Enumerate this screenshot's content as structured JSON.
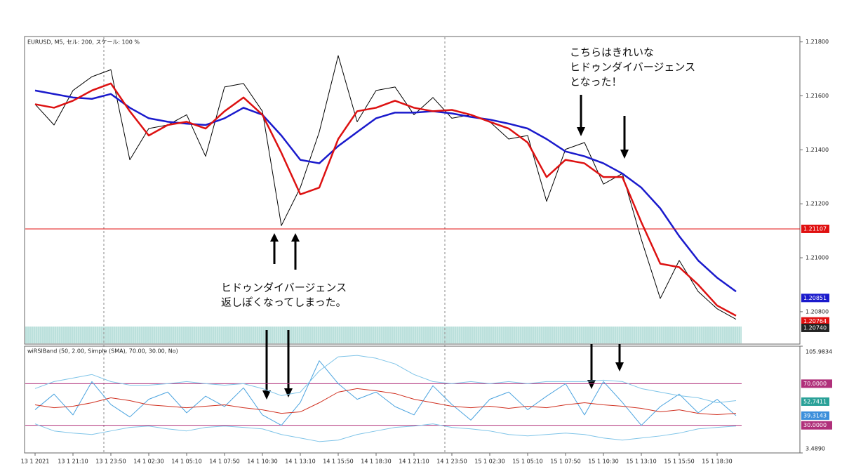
{
  "chart_data": [
    {
      "type": "line",
      "title": "EURUSD, M5, セル: 200, スケール: 100 %",
      "categories": [
        "13 1 2021",
        null,
        "13 1 21:10",
        null,
        "13 1 23:50",
        null,
        "14 1 02:30",
        null,
        "14 1 05:10",
        null,
        "14 1 07:50",
        null,
        "14 1 10:30",
        null,
        "14 1 13:10",
        null,
        "14 1 15:50",
        null,
        "14 1 18:30",
        null,
        "14 1 21:10",
        null,
        "14 1 23:50",
        null,
        "15 1 02:30",
        null,
        "15 1 05:10",
        null,
        "15 1 07:50",
        null,
        "15 1 10:30",
        null,
        "15 1 13:10",
        null,
        "15 1 15:50",
        null,
        "15 1 18:30",
        null
      ],
      "ylim": [
        1.2068,
        1.2182
      ],
      "yticks": [
        {
          "value": 1.218,
          "label": "1.21800"
        },
        {
          "value": 1.216,
          "label": "1.21600"
        },
        {
          "value": 1.214,
          "label": "1.21400"
        },
        {
          "value": 1.212,
          "label": "1.21200"
        },
        {
          "value": 1.21,
          "label": "1.21000"
        },
        {
          "value": 1.208,
          "label": "1.20800"
        }
      ],
      "series": [
        {
          "color": "#000000",
          "values": [
            1.21569,
            1.21492,
            1.2162,
            1.21671,
            1.21697,
            1.21363,
            1.21479,
            1.21492,
            1.2153,
            1.21376,
            1.21633,
            1.21646,
            1.21543,
            1.21119,
            1.2126,
            1.21466,
            1.21749,
            1.21504,
            1.2162,
            1.21633,
            1.2153,
            1.21594,
            1.21517,
            1.2153,
            1.21504,
            1.2144,
            1.21453,
            1.21209,
            1.21402,
            1.21427,
            1.21273,
            1.21312,
            1.21068,
            1.20849,
            1.2099,
            1.20875,
            1.20811,
            1.20772
          ]
        },
        {
          "color": "#1a1acc",
          "values": [
            1.2162,
            1.21607,
            1.21594,
            1.21589,
            1.21607,
            1.21556,
            1.21517,
            1.21504,
            1.21497,
            1.21492,
            1.21517,
            1.21556,
            1.2153,
            1.21453,
            1.21363,
            1.2135,
            1.21414,
            1.21466,
            1.21517,
            1.21538,
            1.21538,
            1.21543,
            1.21535,
            1.21522,
            1.21512,
            1.21497,
            1.21479,
            1.2144,
            1.21394,
            1.21376,
            1.2135,
            1.21312,
            1.2126,
            1.21183,
            1.2108,
            1.2099,
            1.20926,
            1.20875
          ]
        },
        {
          "color": "#dd1111",
          "values": [
            1.21569,
            1.21556,
            1.21582,
            1.2162,
            1.21646,
            1.21543,
            1.21453,
            1.21492,
            1.21504,
            1.21479,
            1.21543,
            1.21594,
            1.2153,
            1.21389,
            1.21235,
            1.2126,
            1.2144,
            1.21543,
            1.21556,
            1.21582,
            1.21556,
            1.21543,
            1.21548,
            1.2153,
            1.21504,
            1.21479,
            1.21427,
            1.21299,
            1.21363,
            1.2135,
            1.21299,
            1.21299,
            1.21132,
            1.20978,
            1.20965,
            1.209,
            1.20823,
            1.20785
          ]
        }
      ],
      "markers": [
        {
          "value": 1.21107,
          "color": "#e01010",
          "line": true
        },
        {
          "value": 1.20851,
          "color": "#1a1acc"
        },
        {
          "value": 1.20764,
          "color": "#e01010"
        },
        {
          "value": 1.2074,
          "label": "1.20740",
          "color": "#222222"
        }
      ],
      "annotations": [
        {
          "lines": [
            "こちらはきれいな",
            "ヒドゥンダイバージェンス",
            "となった！"
          ]
        },
        {
          "lines": [
            "ヒドゥンダイバージェンス",
            "返しぽくなってしまった。"
          ]
        }
      ]
    },
    {
      "type": "line",
      "title": "wiRSIBand (50, 2.00, Simple (SMA), 70.00, 30.00, No)",
      "ylim": [
        3.489,
        105.9834
      ],
      "yticks": [
        {
          "value": 105.9834,
          "label": "105.9834"
        },
        {
          "value": 3.489,
          "label": "3.4890"
        }
      ],
      "levels": [
        {
          "value": 70,
          "label": "70.0000",
          "color": "#b0307a"
        },
        {
          "value": 30,
          "label": "30.0000",
          "color": "#b0307a"
        }
      ],
      "markers": [
        {
          "value": 52.7411,
          "color": "#2aa198"
        },
        {
          "value": 39.3143,
          "color": "#3c8fdb"
        }
      ],
      "series": [
        {
          "color": "#4aa3df",
          "values": [
            45,
            60,
            40,
            72,
            50,
            38,
            55,
            62,
            42,
            58,
            48,
            66,
            40,
            30,
            52,
            92,
            70,
            55,
            62,
            48,
            40,
            68,
            50,
            35,
            55,
            62,
            45,
            58,
            70,
            40,
            72,
            52,
            30,
            48,
            60,
            42,
            55,
            39.3143
          ]
        },
        {
          "color": "#7fc4e8",
          "values": [
            65.3,
            72,
            75.4,
            78.8,
            72,
            68.6,
            68.6,
            70,
            72,
            70,
            68.6,
            70,
            65.3,
            58.5,
            61.9,
            82.2,
            95.8,
            97.1,
            94.4,
            89,
            78.8,
            72,
            70,
            72,
            70,
            72,
            70,
            72,
            72,
            72,
            73.4,
            72,
            65.3,
            61.9,
            58.5,
            56.4,
            51.7,
            53.7
          ]
        },
        {
          "color": "#7fc4e8",
          "values": [
            31.4,
            24.6,
            22.5,
            21.2,
            24.6,
            28,
            29.3,
            26.6,
            24.6,
            28,
            29.3,
            28,
            26.6,
            21.2,
            17.8,
            14.4,
            15.8,
            21.2,
            24.6,
            28,
            29.3,
            31.4,
            28,
            26.6,
            24.6,
            21.2,
            19.8,
            21.2,
            22.5,
            21.2,
            17.8,
            15.8,
            17.8,
            19.8,
            22.5,
            26.6,
            28,
            29.3
          ]
        },
        {
          "color": "#d03020",
          "values": [
            49.7,
            46.9,
            48.3,
            51.7,
            56.4,
            53.7,
            49.7,
            48.3,
            46.9,
            48.3,
            49.7,
            46.9,
            44.9,
            41.5,
            42.9,
            51.7,
            61.9,
            65.3,
            63.2,
            60.5,
            55.1,
            51.7,
            48.3,
            46.9,
            48.3,
            46.3,
            48.3,
            46.9,
            49.7,
            51.7,
            49.7,
            48.3,
            46.3,
            42.9,
            44.9,
            41.5,
            40.2,
            41.5
          ]
        }
      ]
    }
  ]
}
